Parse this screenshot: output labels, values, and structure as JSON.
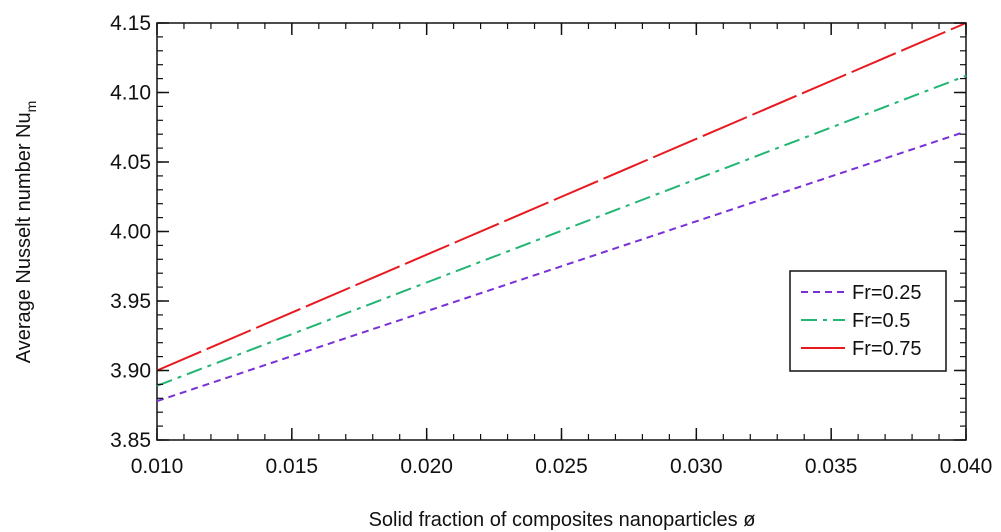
{
  "chart_data": {
    "type": "line",
    "title": "",
    "xlabel": "Solid fraction of composites nanoparticles ø",
    "ylabel_main": "Average Nusselt number Nu",
    "ylabel_sub": "m",
    "xlim": [
      0.01,
      0.04
    ],
    "ylim": [
      3.85,
      4.15
    ],
    "xticks": [
      0.01,
      0.015,
      0.02,
      0.025,
      0.03,
      0.035,
      0.04
    ],
    "xtick_labels": [
      "0.010",
      "0.015",
      "0.020",
      "0.025",
      "0.030",
      "0.035",
      "0.040"
    ],
    "yticks": [
      3.85,
      3.9,
      3.95,
      4.0,
      4.05,
      4.1,
      4.15
    ],
    "ytick_labels": [
      "3.85",
      "3.90",
      "3.95",
      "4.00",
      "4.05",
      "4.10",
      "4.15"
    ],
    "x_minor_step": 0.001,
    "y_minor_step": 0.01,
    "grid": false,
    "legend_position": "right",
    "series": [
      {
        "name": "Fr=0.25",
        "color": "#7b2fd6",
        "dash": "dashed",
        "x": [
          0.01,
          0.04
        ],
        "y": [
          3.878,
          4.072
        ]
      },
      {
        "name": "Fr=0.5",
        "color": "#22b573",
        "dash": "dashdot",
        "x": [
          0.01,
          0.04
        ],
        "y": [
          3.889,
          4.112
        ]
      },
      {
        "name": "Fr=0.75",
        "color": "#e8191f",
        "dash": "longdash",
        "x": [
          0.01,
          0.04
        ],
        "y": [
          3.9,
          4.15
        ]
      }
    ]
  }
}
